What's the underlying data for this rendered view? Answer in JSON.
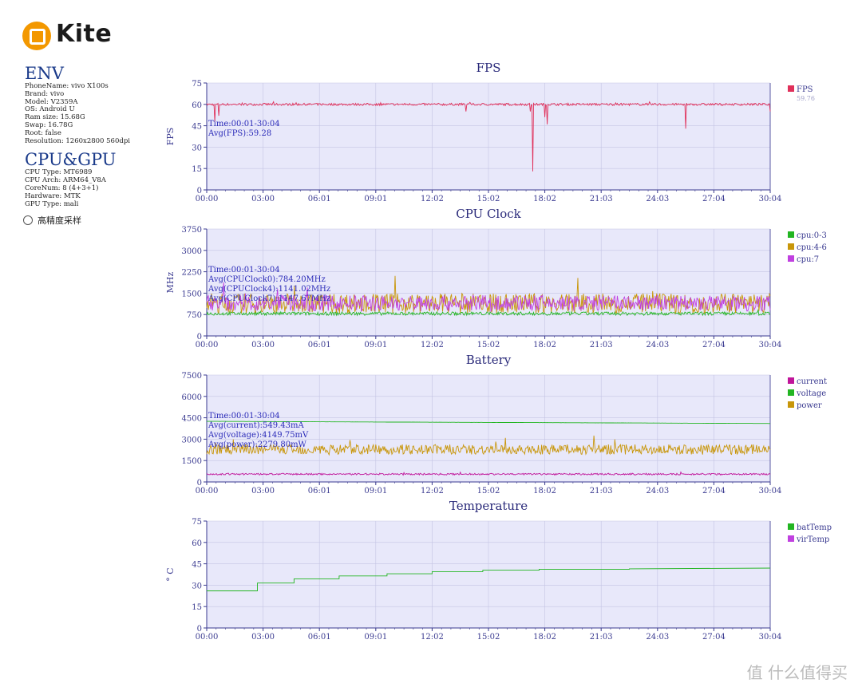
{
  "brand": {
    "name": "Kite",
    "logo_color": "#f39800"
  },
  "env": {
    "title": "ENV",
    "lines": [
      "PhoneName: vivo X100s",
      "Brand: vivo",
      "Model: V2359A",
      "OS: Android U",
      "Ram size: 15.68G",
      "Swap: 16.78G",
      "Root: false",
      "Resolution: 1260x2800 560dpi"
    ]
  },
  "cpu_gpu": {
    "title": "CPU&GPU",
    "lines": [
      "CPU Type: MT6989",
      "CPU Arch: ARM64_V8A",
      "CoreNum: 8 (4+3+1)",
      "Hardware: MTK",
      "GPU Type: mali"
    ]
  },
  "high_precision": {
    "label": "高精度采样",
    "checked": false
  },
  "watermark": "值 什么值得买",
  "colors": {
    "plot_bg": "#e8e8fa",
    "grid": "#c4c4e4",
    "axis": "#3a3a90",
    "annot": "#2a2ab8",
    "title": "#2a2a7a"
  },
  "chart_data": [
    {
      "type": "line",
      "title": "FPS",
      "ylabel": "FPS",
      "ylim": [
        0,
        75
      ],
      "yticks": [
        0,
        15,
        30,
        45,
        60,
        75
      ],
      "x_ticks": [
        "00:00",
        "03:00",
        "06:01",
        "09:01",
        "12:02",
        "15:02",
        "18:02",
        "21:03",
        "24:03",
        "27:04",
        "30:04"
      ],
      "annotations": [
        "Time:00:01-30:04",
        "Avg(FPS):59.28"
      ],
      "legend": [
        {
          "name": "FPS",
          "value": "59.76",
          "color": "#e0305a"
        }
      ],
      "series": [
        {
          "name": "FPS",
          "color": "#e0305a",
          "base": 60,
          "noise": 0.8,
          "values_note_spikes": [
            [
              0.015,
              48
            ],
            [
              0.022,
              52
            ],
            [
              0.365,
              45
            ],
            [
              0.46,
              55
            ],
            [
              0.575,
              55
            ],
            [
              0.579,
              13
            ],
            [
              0.6,
              51
            ],
            [
              0.605,
              46
            ],
            [
              0.85,
              43
            ],
            [
              1.0,
              55
            ]
          ]
        }
      ]
    },
    {
      "type": "line",
      "title": "CPU Clock",
      "ylabel": "MHz",
      "ylim": [
        0,
        3750
      ],
      "yticks": [
        0,
        750,
        1500,
        2250,
        3000,
        3750
      ],
      "x_ticks": [
        "00:00",
        "03:00",
        "06:01",
        "09:01",
        "12:02",
        "15:02",
        "18:02",
        "21:03",
        "24:03",
        "27:04",
        "30:04"
      ],
      "annotations": [
        "Time:00:01-30:04",
        "Avg(CPUClock0):784.20MHz",
        "Avg(CPUClock4):1141.02MHz",
        "Avg(CPUClock7):1147.67MHz"
      ],
      "legend": [
        {
          "name": "cpu:0-3",
          "color": "#22b522"
        },
        {
          "name": "cpu:4-6",
          "color": "#c8960a"
        },
        {
          "name": "cpu:7",
          "color": "#c040e0"
        }
      ],
      "series": [
        {
          "name": "cpu:0-3",
          "color": "#22b522",
          "base": 784,
          "noise": 60
        },
        {
          "name": "cpu:4-6",
          "color": "#c8960a",
          "base": 1141,
          "noise": 350
        },
        {
          "name": "cpu:7",
          "color": "#c040e0",
          "base": 1148,
          "noise": 280
        }
      ]
    },
    {
      "type": "line",
      "title": "Battery",
      "ylabel": "",
      "ylim": [
        0,
        7500
      ],
      "yticks": [
        0,
        1500,
        3000,
        4500,
        6000,
        7500
      ],
      "x_ticks": [
        "00:00",
        "03:00",
        "06:01",
        "09:01",
        "12:02",
        "15:02",
        "18:02",
        "21:03",
        "24:03",
        "27:04",
        "30:04"
      ],
      "annotations": [
        "Time:00:01-30:04",
        "Avg(current):549.43mA",
        "Avg(voltage):4149.75mV",
        "Avg(power):2279.80mW"
      ],
      "legend": [
        {
          "name": "current",
          "color": "#c0159a"
        },
        {
          "name": "voltage",
          "color": "#22b522"
        },
        {
          "name": "power",
          "color": "#c8960a"
        }
      ],
      "series": [
        {
          "name": "current",
          "color": "#c0159a",
          "base": 549,
          "noise": 60
        },
        {
          "name": "voltage",
          "color": "#22b522",
          "start": 4250,
          "end": 4100,
          "noise": 5
        },
        {
          "name": "power",
          "color": "#c8960a",
          "base": 2280,
          "noise": 350
        }
      ]
    },
    {
      "type": "line",
      "title": "Temperature",
      "ylabel": "° C",
      "ylim": [
        0,
        75
      ],
      "yticks": [
        0,
        15,
        30,
        45,
        60,
        75
      ],
      "x_ticks": [
        "00:00",
        "03:00",
        "06:01",
        "09:01",
        "12:02",
        "15:02",
        "18:02",
        "21:03",
        "24:03",
        "27:04",
        "30:04"
      ],
      "annotations": [],
      "legend": [
        {
          "name": "batTemp",
          "color": "#22b522"
        },
        {
          "name": "virTemp",
          "color": "#c040e0"
        }
      ],
      "series": [
        {
          "name": "batTemp",
          "color": "#22b522",
          "steps": [
            [
              0,
              26
            ],
            [
              0.09,
              26
            ],
            [
              0.09,
              31.5
            ],
            [
              0.155,
              31.5
            ],
            [
              0.155,
              34.5
            ],
            [
              0.235,
              34.5
            ],
            [
              0.235,
              36.5
            ],
            [
              0.32,
              36.5
            ],
            [
              0.32,
              38
            ],
            [
              0.4,
              38
            ],
            [
              0.4,
              39.5
            ],
            [
              0.49,
              39.5
            ],
            [
              0.49,
              40.5
            ],
            [
              0.59,
              40.5
            ],
            [
              0.59,
              41.2
            ],
            [
              0.75,
              41.2
            ],
            [
              0.75,
              41.5
            ],
            [
              1.0,
              42
            ]
          ]
        }
      ]
    }
  ]
}
